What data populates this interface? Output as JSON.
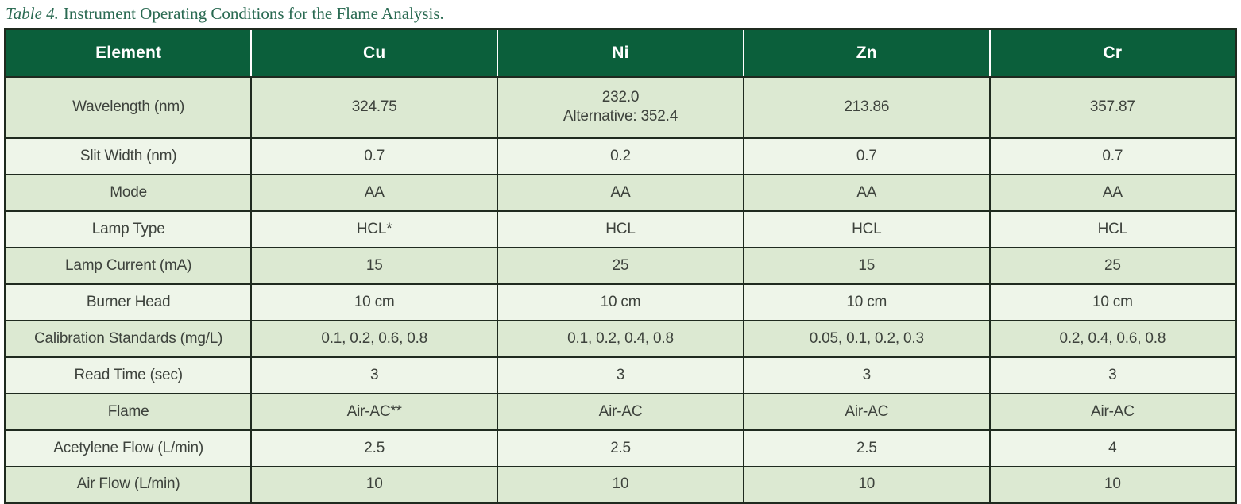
{
  "caption": {
    "label": "Table 4.",
    "text": "Instrument Operating Conditions for the Flame Analysis."
  },
  "table": {
    "headers": [
      "Element",
      "Cu",
      "Ni",
      "Zn",
      "Cr"
    ],
    "rows": [
      {
        "label": "Wavelength (nm)",
        "values": [
          "324.75",
          "232.0\nAlternative: 352.4",
          "213.86",
          "357.87"
        ]
      },
      {
        "label": "Slit Width (nm)",
        "values": [
          "0.7",
          "0.2",
          "0.7",
          "0.7"
        ]
      },
      {
        "label": "Mode",
        "values": [
          "AA",
          "AA",
          "AA",
          "AA"
        ]
      },
      {
        "label": "Lamp Type",
        "values": [
          "HCL*",
          "HCL",
          "HCL",
          "HCL"
        ]
      },
      {
        "label": "Lamp Current (mA)",
        "values": [
          "15",
          "25",
          "15",
          "25"
        ]
      },
      {
        "label": "Burner Head",
        "values": [
          "10 cm",
          "10 cm",
          "10 cm",
          "10 cm"
        ]
      },
      {
        "label": "Calibration Standards (mg/L)",
        "values": [
          "0.1, 0.2, 0.6, 0.8",
          "0.1, 0.2, 0.4, 0.8",
          "0.05, 0.1, 0.2, 0.3",
          "0.2, 0.4, 0.6, 0.8"
        ]
      },
      {
        "label": "Read Time (sec)",
        "values": [
          "3",
          "3",
          "3",
          "3"
        ]
      },
      {
        "label": "Flame",
        "values": [
          "Air-AC**",
          "Air-AC",
          "Air-AC",
          "Air-AC"
        ]
      },
      {
        "label": "Acetylene Flow (L/min)",
        "values": [
          "2.5",
          "2.5",
          "2.5",
          "4"
        ]
      },
      {
        "label": "Air Flow (L/min)",
        "values": [
          "10",
          "10",
          "10",
          "10"
        ]
      }
    ]
  },
  "colors": {
    "header_bg": "#0b5f3b",
    "header_text": "#ffffff",
    "row_medium": "#dce9d2",
    "row_light": "#eef5e9",
    "border": "#1f2a1f",
    "caption_text": "#2a6a52",
    "cell_text": "#3d423c",
    "page_bg": "#ffffff"
  }
}
